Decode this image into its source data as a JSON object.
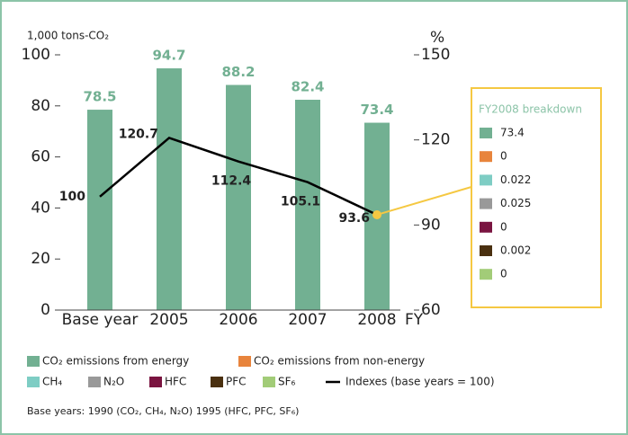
{
  "chart_data": {
    "type": "bar",
    "y_label": "1,000 tons-CO₂",
    "y2_label": "%",
    "x_label": "FY",
    "categories": [
      "Base year",
      "2005",
      "2006",
      "2007",
      "2008"
    ],
    "ylim": [
      0,
      100
    ],
    "yticks": [
      0,
      20,
      40,
      60,
      80,
      100
    ],
    "y2lim": [
      60,
      150
    ],
    "y2ticks": [
      60,
      90,
      120,
      150
    ],
    "series": [
      {
        "type": "bar",
        "values": [
          78.5,
          94.7,
          88.2,
          82.4,
          73.4
        ]
      },
      {
        "type": "line",
        "name": "Indexes (base years = 100)",
        "color": "#000000",
        "axis": "y2",
        "values": [
          100,
          120.7,
          112.4,
          105.1,
          93.6
        ]
      }
    ],
    "breakdown_title": "FY2008 breakdown",
    "gases": [
      {
        "name": "CO₂ emissions from energy",
        "color": "#72b092",
        "value": 73.4
      },
      {
        "name": "CO₂ emissions from non-energy",
        "color": "#e8843c",
        "value": 0
      },
      {
        "name": "CH₄",
        "color": "#7ecdc4",
        "value": 0.022
      },
      {
        "name": "N₂O",
        "color": "#999999",
        "value": 0.025
      },
      {
        "name": "HFC",
        "color": "#7a1440",
        "value": 0
      },
      {
        "name": "PFC",
        "color": "#4a3010",
        "value": 0.002
      },
      {
        "name": "SF₆",
        "color": "#a2cc78",
        "value": 0
      }
    ],
    "note": "Base years: 1990 (CO₂, CH₄, N₂O) 1995 (HFC, PFC, SF₆)"
  }
}
